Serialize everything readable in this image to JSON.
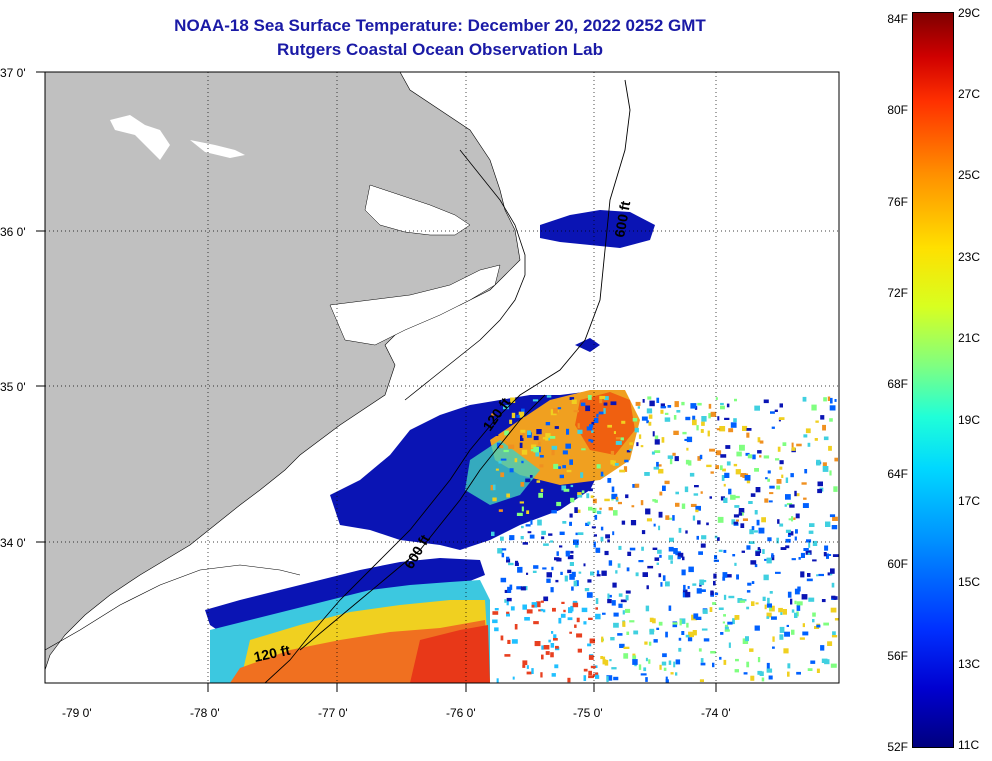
{
  "title": {
    "line1": "NOAA-18 Sea Surface Temperature:  December 20, 2022 0252 GMT",
    "line2": "Rutgers Coastal Ocean Observation Lab"
  },
  "map": {
    "lat_ticks": [
      "37 0'",
      "36 0'",
      "35 0'",
      "34 0'"
    ],
    "lon_ticks": [
      "-79 0'",
      "-78 0'",
      "-77 0'",
      "-76 0'",
      "-75 0'",
      "-74 0'"
    ],
    "contour_labels": [
      "600 ft",
      "120 ft",
      "600 ft",
      "120 ft"
    ],
    "land_color": "#c0c0c0",
    "ocean_color": "#ffffff"
  },
  "colorbar": {
    "fahrenheit": [
      "84F",
      "80F",
      "76F",
      "72F",
      "68F",
      "64F",
      "60F",
      "56F",
      "52F"
    ],
    "celsius": [
      "29C",
      "27C",
      "25C",
      "23C",
      "21C",
      "19C",
      "17C",
      "15C",
      "13C",
      "11C"
    ]
  }
}
